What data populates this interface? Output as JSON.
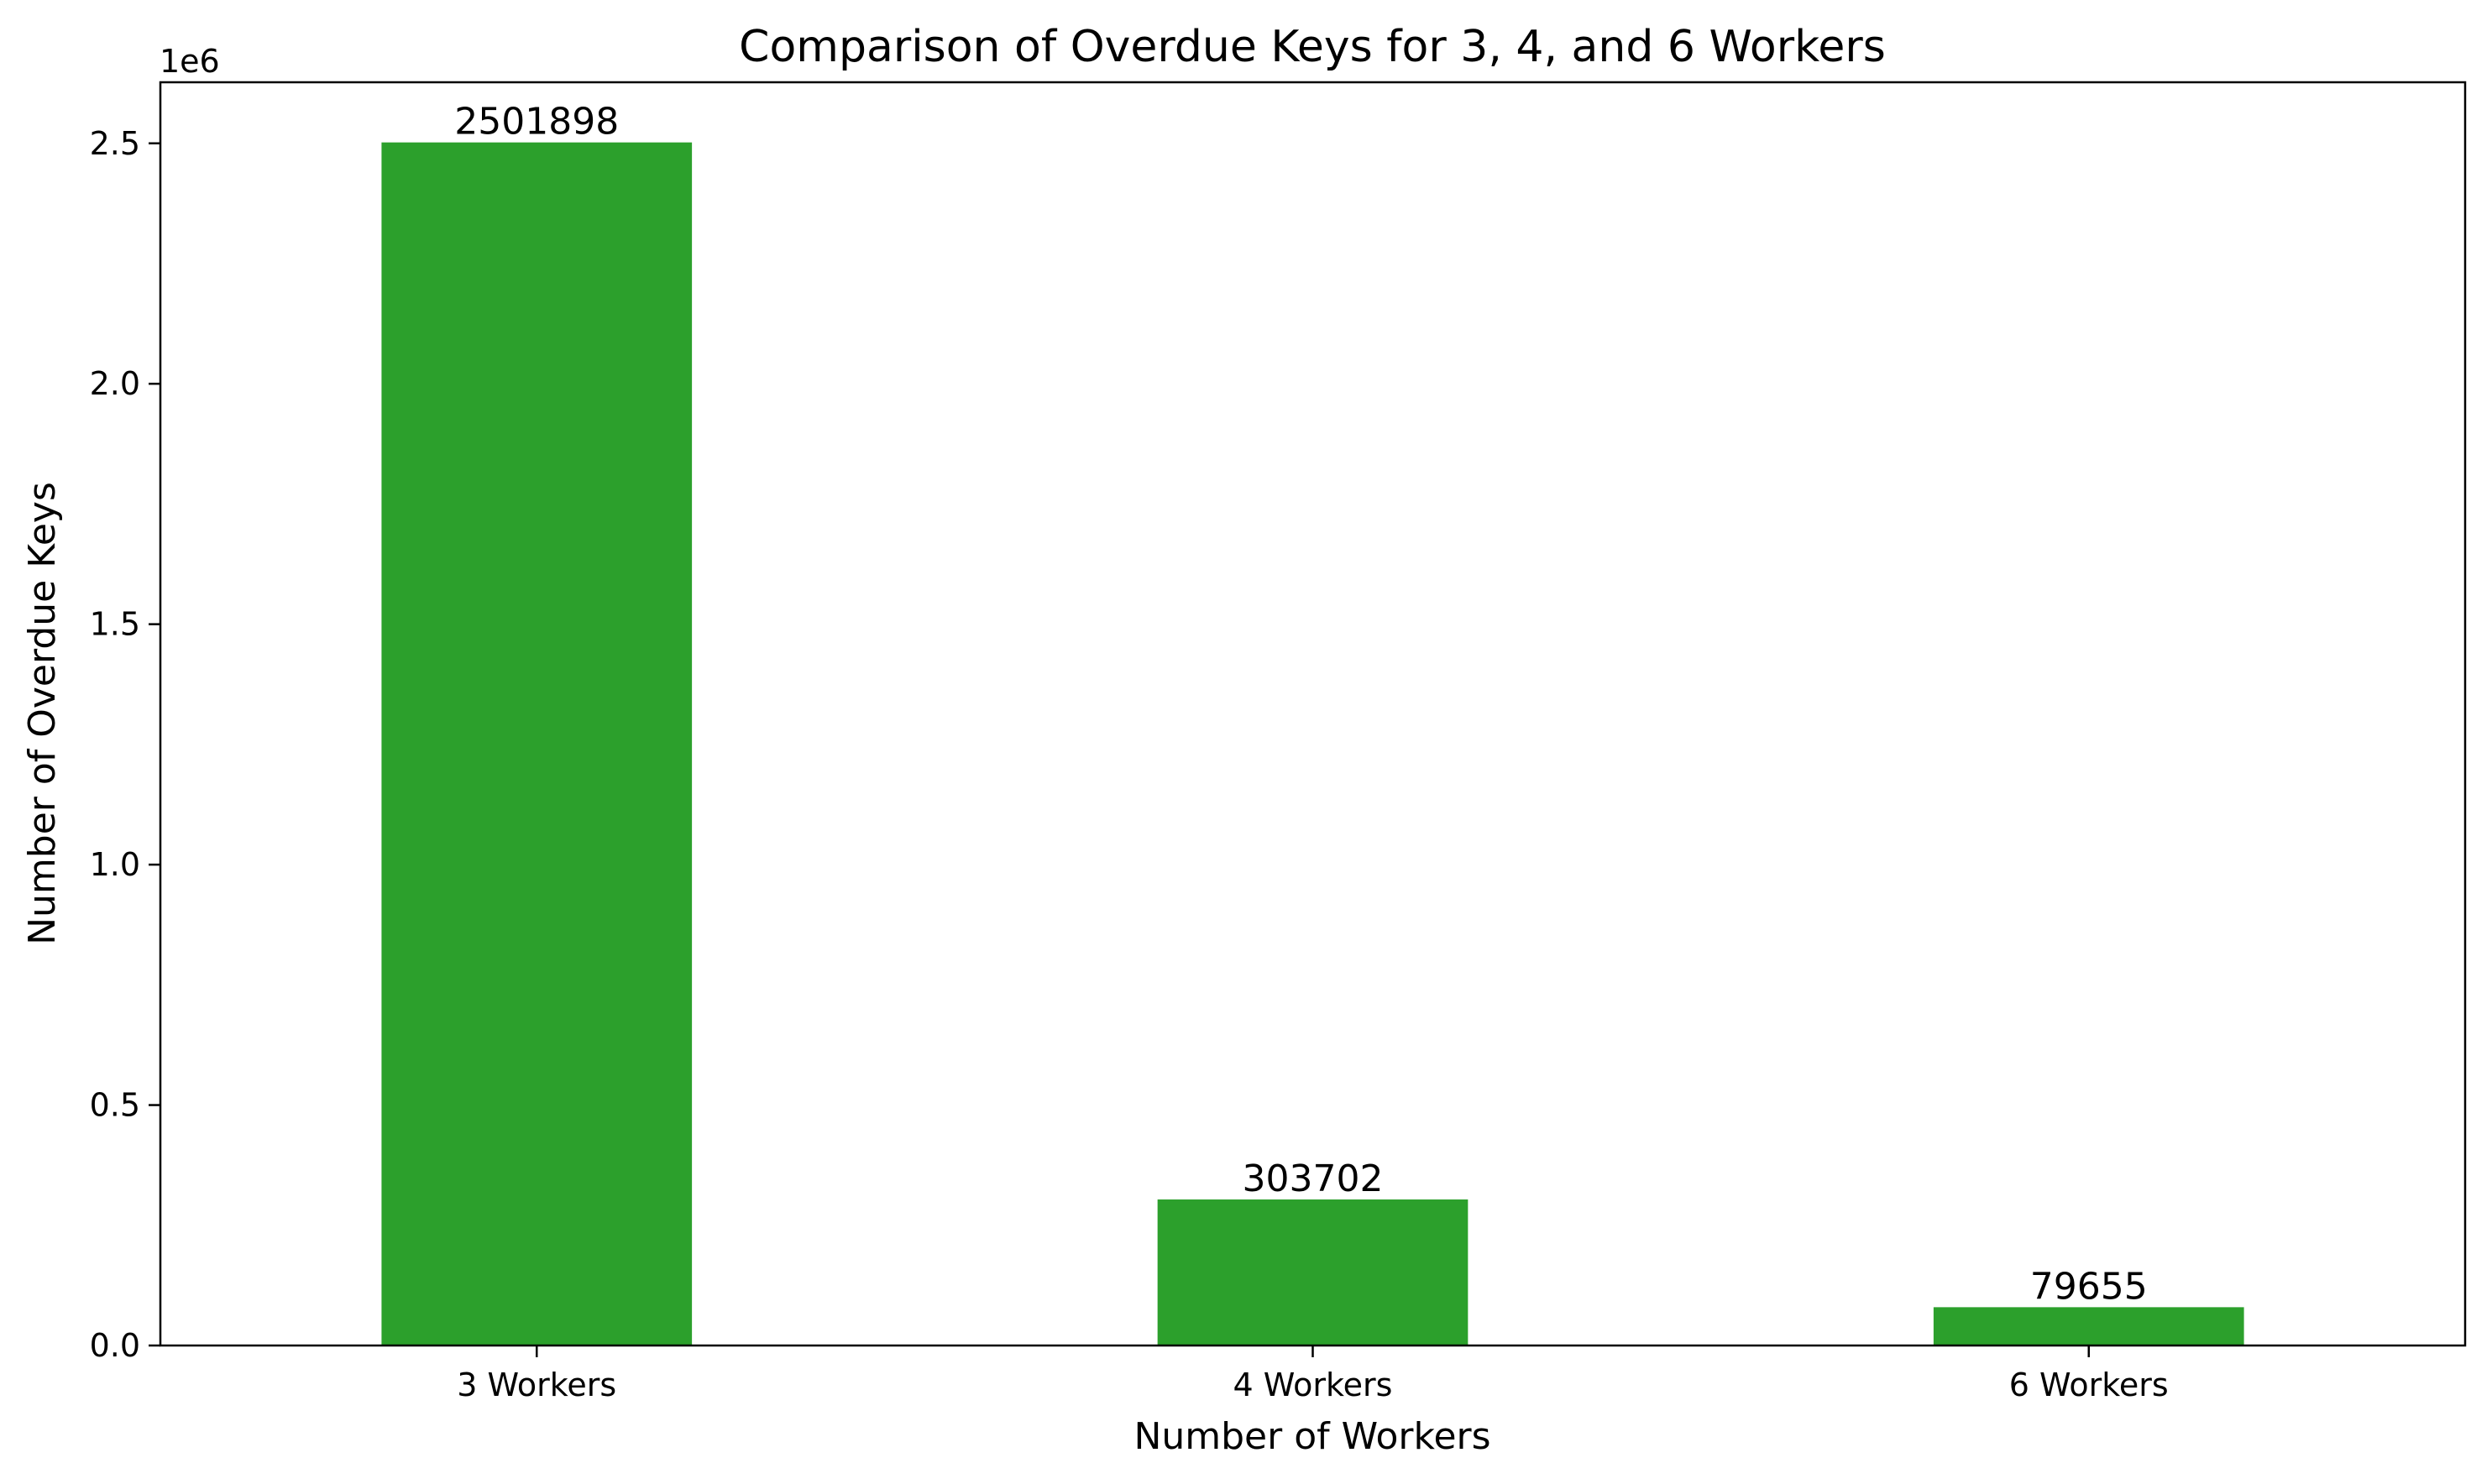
{
  "chart_data": {
    "type": "bar",
    "title": "Comparison of Overdue Keys for 3, 4, and 6 Workers",
    "xlabel": "Number of Workers",
    "ylabel": "Number of Overdue Keys",
    "categories": [
      "3 Workers",
      "4 Workers",
      "6 Workers"
    ],
    "values": [
      2501898,
      303702,
      79655
    ],
    "data_labels": [
      "2501898",
      "303702",
      "79655"
    ],
    "y_offset_text": "1e6",
    "y_ticks": [
      0.0,
      0.5,
      1.0,
      1.5,
      2.0,
      2.5
    ],
    "y_tick_labels": [
      "0.0",
      "0.5",
      "1.0",
      "1.5",
      "2.0",
      "2.5"
    ],
    "y_tick_multiplier": 1000000,
    "ylim": [
      0,
      2627000
    ],
    "grid": false,
    "bar_color": "#2ca02c"
  }
}
